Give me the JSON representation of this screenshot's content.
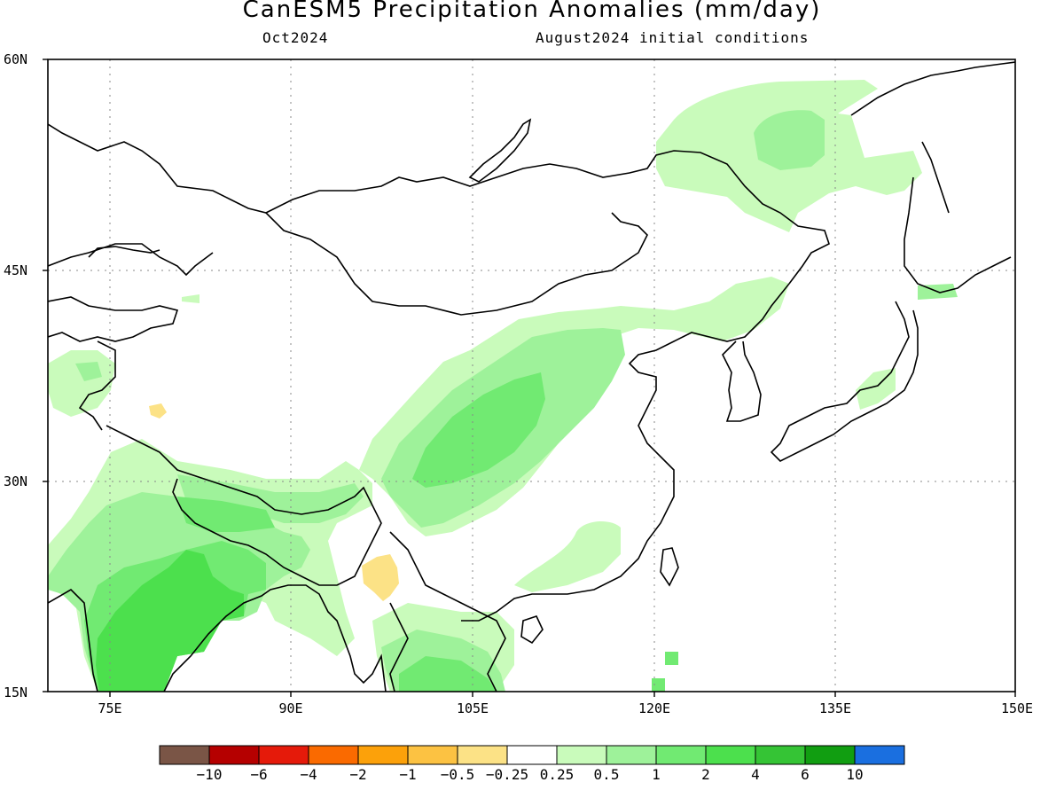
{
  "title": "CanESM5 Precipitation Anomalies (mm/day)",
  "subtitle_left": "Oct2024",
  "subtitle_right": "August2024 initial conditions",
  "map": {
    "lat_labels": [
      "60N",
      "45N",
      "30N",
      "15N"
    ],
    "lon_labels": [
      "75E",
      "90E",
      "105E",
      "120E",
      "135E",
      "150E"
    ],
    "extent": {
      "lon_min": 70,
      "lon_max": 150,
      "lat_min": 15,
      "lat_max": 60
    }
  },
  "colorbar": {
    "colors": [
      "#7a5546",
      "#b50000",
      "#e51a0a",
      "#fa6a00",
      "#fca10a",
      "#fcc242",
      "#fce286",
      "#ffffff",
      "#c9fbbb",
      "#9ef29a",
      "#71ea72",
      "#4ce04d",
      "#35c435",
      "#119e11",
      "#1a6fe0"
    ],
    "tick_labels": [
      "-10",
      "-6",
      "-4",
      "-2",
      "-1",
      "-0.5",
      "-0.25",
      "0.25",
      "0.5",
      "1",
      "2",
      "4",
      "6",
      "10"
    ]
  },
  "legend_colors": {
    "c05": "#c9fbbb",
    "c1": "#9ef29a",
    "c2": "#71ea72",
    "c4": "#4ce04d",
    "neg05": "#fce286"
  }
}
